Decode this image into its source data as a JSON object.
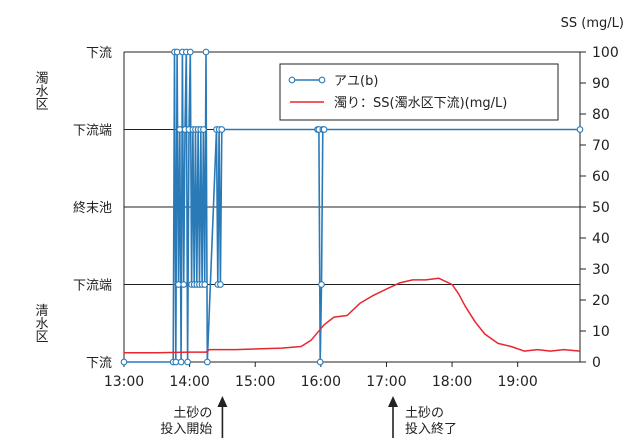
{
  "chart_data": {
    "type": "line",
    "title": "",
    "y2_label": "SS (mg/L)",
    "x_ticks": [
      "13:00",
      "14:00",
      "15:00",
      "16:00",
      "17:00",
      "18:00",
      "19:00"
    ],
    "x_range_hours": [
      13.0,
      19.95
    ],
    "y_left_levels": [
      {
        "label": "下流",
        "level": 0
      },
      {
        "label": "下流端",
        "level": 1
      },
      {
        "label": "終末池",
        "level": 2
      },
      {
        "label": "下流端",
        "level": 3
      },
      {
        "label": "下流",
        "level": 4
      }
    ],
    "region_labels": [
      {
        "label": "清水区",
        "level": 0.5
      },
      {
        "label": "濁水区",
        "level": 3.5
      }
    ],
    "y_right_ticks": [
      "0",
      "10",
      "20",
      "30",
      "40",
      "50",
      "60",
      "70",
      "80",
      "90",
      "100"
    ],
    "y_right_range": [
      0,
      100
    ],
    "grid": "horizontal at left-axis levels",
    "legend_position": "top-right",
    "series": [
      {
        "name": "アユ(b)",
        "color": "#2a7ab8",
        "axis": "left",
        "marker": "circle",
        "points": [
          [
            13.0,
            0
          ],
          [
            13.75,
            0
          ],
          [
            13.77,
            4
          ],
          [
            13.79,
            0
          ],
          [
            13.81,
            4
          ],
          [
            13.83,
            1
          ],
          [
            13.85,
            3
          ],
          [
            13.87,
            0
          ],
          [
            13.89,
            4
          ],
          [
            13.91,
            1
          ],
          [
            13.93,
            3
          ],
          [
            13.95,
            4
          ],
          [
            13.97,
            0
          ],
          [
            13.99,
            3
          ],
          [
            14.01,
            4
          ],
          [
            14.03,
            1
          ],
          [
            14.05,
            3
          ],
          [
            14.07,
            1
          ],
          [
            14.09,
            3
          ],
          [
            14.11,
            1
          ],
          [
            14.13,
            3
          ],
          [
            14.15,
            1
          ],
          [
            14.17,
            3
          ],
          [
            14.19,
            1
          ],
          [
            14.21,
            3
          ],
          [
            14.23,
            1
          ],
          [
            14.25,
            4
          ],
          [
            14.27,
            0
          ],
          [
            14.41,
            3
          ],
          [
            14.43,
            1
          ],
          [
            14.45,
            3
          ],
          [
            14.47,
            1
          ],
          [
            14.49,
            3
          ],
          [
            15.95,
            3
          ],
          [
            15.97,
            3
          ],
          [
            15.99,
            0
          ],
          [
            16.01,
            1
          ],
          [
            16.03,
            3
          ],
          [
            16.05,
            3
          ],
          [
            19.95,
            3
          ]
        ]
      },
      {
        "name": "濁り：SS(濁水区下流)(mg/L)",
        "color": "#e8262f",
        "axis": "right",
        "marker": "none",
        "points": [
          [
            13.0,
            3.0
          ],
          [
            13.5,
            3.0
          ],
          [
            14.0,
            3.2
          ],
          [
            14.25,
            3.2
          ],
          [
            14.3,
            4.0
          ],
          [
            14.7,
            4.0
          ],
          [
            15.4,
            4.5
          ],
          [
            15.7,
            5.0
          ],
          [
            15.85,
            7.0
          ],
          [
            16.05,
            12.0
          ],
          [
            16.2,
            14.5
          ],
          [
            16.4,
            15.0
          ],
          [
            16.6,
            19.0
          ],
          [
            16.8,
            21.5
          ],
          [
            17.0,
            23.5
          ],
          [
            17.2,
            25.5
          ],
          [
            17.4,
            26.5
          ],
          [
            17.6,
            26.5
          ],
          [
            17.8,
            27.0
          ],
          [
            18.0,
            25.0
          ],
          [
            18.1,
            22.0
          ],
          [
            18.2,
            18.0
          ],
          [
            18.35,
            13.0
          ],
          [
            18.5,
            9.0
          ],
          [
            18.7,
            6.0
          ],
          [
            18.9,
            5.0
          ],
          [
            19.1,
            3.5
          ],
          [
            19.3,
            4.0
          ],
          [
            19.5,
            3.5
          ],
          [
            19.7,
            4.0
          ],
          [
            19.95,
            3.5
          ]
        ]
      }
    ],
    "annotations": [
      {
        "lines": [
          "土砂の",
          "投入開始"
        ],
        "x": 14.5
      },
      {
        "lines": [
          "土砂の",
          "投入終了"
        ],
        "x": 17.1
      }
    ]
  }
}
